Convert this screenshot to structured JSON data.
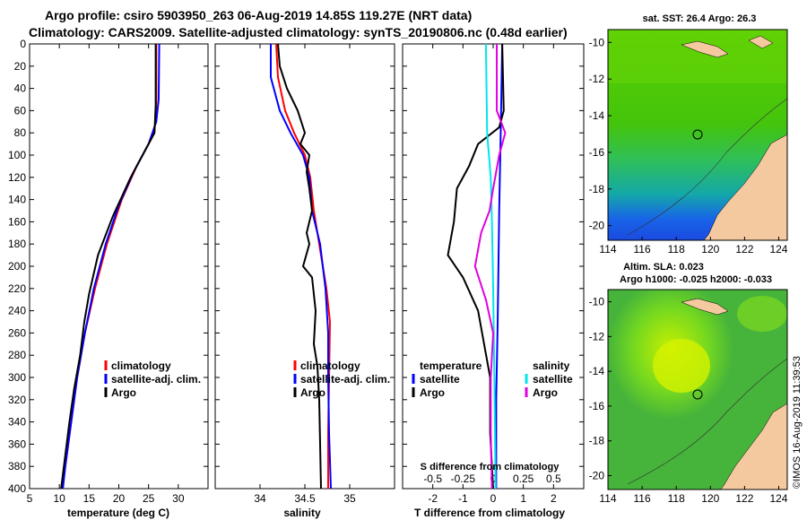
{
  "title": {
    "line1": "Argo profile: csiro 5903950_263 06-Aug-2019 14.85S 119.27E (NRT data)",
    "line2": "Climatology: CARS2009. Satellite-adjusted climatology: synTS_20190806.nc (0.48d earlier)"
  },
  "stamp": "©IMOS 16-Aug-2019 11:39:53",
  "colors": {
    "climatology": "#ff0000",
    "satellite": "#0000ff",
    "argo": "#000000",
    "sat_s": "#00e5ee",
    "argo_s": "#e000e0",
    "land": "#f5c9a0"
  },
  "maps": {
    "sst": {
      "title": "sat. SST: 26.4 Argo: 26.3"
    },
    "sla": {
      "title_line1": "Altim. SLA: 0.023",
      "title_line2": "Argo h1000: -0.025 h2000: -0.033"
    },
    "xticks": [
      "114",
      "116",
      "118",
      "120",
      "122",
      "124"
    ],
    "yticks": [
      "-10",
      "-12",
      "-14",
      "-16",
      "-18",
      "-20"
    ]
  },
  "chart_data": [
    {
      "type": "line",
      "name": "temperature",
      "xlabel": "temperature (deg C)",
      "ylabel": "",
      "xlim": [
        5,
        35
      ],
      "ylim": [
        400,
        0
      ],
      "xticks": [
        "5",
        "10",
        "15",
        "20",
        "25",
        "30"
      ],
      "xtick_values": [
        5,
        10,
        15,
        20,
        25,
        30
      ],
      "yticks": [
        "0",
        "20",
        "40",
        "60",
        "80",
        "100",
        "120",
        "140",
        "160",
        "180",
        "200",
        "220",
        "240",
        "260",
        "280",
        "300",
        "320",
        "340",
        "360",
        "380",
        "400"
      ],
      "legend": [
        "climatology",
        "satellite-adj. clim.",
        "Argo"
      ],
      "series": [
        {
          "name": "climatology",
          "color": "red",
          "values": [
            [
              26.3,
              0
            ],
            [
              26.3,
              50
            ],
            [
              26.2,
              70
            ],
            [
              25.5,
              85
            ],
            [
              23,
              110
            ],
            [
              20.5,
              140
            ],
            [
              18,
              180
            ],
            [
              16,
              220
            ],
            [
              14.3,
              260
            ],
            [
              13,
              300
            ],
            [
              12,
              340
            ],
            [
              11,
              380
            ],
            [
              10.5,
              400
            ]
          ]
        },
        {
          "name": "satellite-adj. clim.",
          "color": "blue",
          "values": [
            [
              26.8,
              0
            ],
            [
              26.7,
              50
            ],
            [
              26.3,
              70
            ],
            [
              25,
              90
            ],
            [
              22.5,
              115
            ],
            [
              20,
              145
            ],
            [
              17.8,
              180
            ],
            [
              15.8,
              220
            ],
            [
              14.3,
              260
            ],
            [
              13,
              300
            ],
            [
              12,
              340
            ],
            [
              11,
              380
            ],
            [
              10.6,
              400
            ]
          ]
        },
        {
          "name": "Argo",
          "color": "black",
          "values": [
            [
              26.2,
              0
            ],
            [
              26.2,
              55
            ],
            [
              26,
              80
            ],
            [
              24.5,
              95
            ],
            [
              22,
              120
            ],
            [
              19,
              155
            ],
            [
              16.5,
              190
            ],
            [
              15,
              225
            ],
            [
              14.2,
              250
            ],
            [
              13.5,
              280
            ],
            [
              12.5,
              310
            ],
            [
              11.7,
              340
            ],
            [
              11,
              370
            ],
            [
              10.3,
              400
            ]
          ]
        }
      ]
    },
    {
      "type": "line",
      "name": "salinity",
      "xlabel": "salinity",
      "ylabel": "",
      "xlim": [
        33.5,
        35.5
      ],
      "ylim": [
        400,
        0
      ],
      "xticks": [
        "34",
        "34.5",
        "35"
      ],
      "xtick_values": [
        34,
        34.5,
        35
      ],
      "legend": [
        "climatology",
        "satellite-adj. clim.",
        "Argo"
      ],
      "series": [
        {
          "name": "climatology",
          "color": "red",
          "values": [
            [
              34.18,
              0
            ],
            [
              34.2,
              30
            ],
            [
              34.28,
              60
            ],
            [
              34.38,
              80
            ],
            [
              34.5,
              100
            ],
            [
              34.56,
              120
            ],
            [
              34.6,
              150
            ],
            [
              34.66,
              180
            ],
            [
              34.74,
              220
            ],
            [
              34.78,
              250
            ],
            [
              34.77,
              300
            ],
            [
              34.76,
              350
            ],
            [
              34.76,
              400
            ]
          ]
        },
        {
          "name": "satellite-adj. clim.",
          "color": "blue",
          "values": [
            [
              34.12,
              0
            ],
            [
              34.12,
              30
            ],
            [
              34.22,
              60
            ],
            [
              34.34,
              80
            ],
            [
              34.48,
              100
            ],
            [
              34.55,
              120
            ],
            [
              34.58,
              150
            ],
            [
              34.67,
              180
            ],
            [
              34.73,
              220
            ],
            [
              34.76,
              260
            ],
            [
              34.76,
              300
            ],
            [
              34.77,
              350
            ],
            [
              34.79,
              400
            ]
          ]
        },
        {
          "name": "Argo",
          "color": "black",
          "values": [
            [
              34.2,
              0
            ],
            [
              34.22,
              20
            ],
            [
              34.3,
              40
            ],
            [
              34.42,
              60
            ],
            [
              34.5,
              80
            ],
            [
              34.45,
              90
            ],
            [
              34.55,
              100
            ],
            [
              34.52,
              115
            ],
            [
              34.55,
              130
            ],
            [
              34.58,
              150
            ],
            [
              34.52,
              170
            ],
            [
              34.55,
              180
            ],
            [
              34.48,
              200
            ],
            [
              34.58,
              210
            ],
            [
              34.62,
              240
            ],
            [
              34.6,
              270
            ],
            [
              34.64,
              290
            ],
            [
              34.66,
              320
            ],
            [
              34.67,
              360
            ],
            [
              34.68,
              400
            ]
          ]
        }
      ]
    },
    {
      "type": "line",
      "name": "difference",
      "xlabel": "T difference from climatology",
      "xlabel_top": "S difference from climatology",
      "xlim": [
        -3,
        3
      ],
      "ylim": [
        400,
        0
      ],
      "xticks": [
        "-2",
        "-1",
        "0",
        "1",
        "2"
      ],
      "xtick_values": [
        -2,
        -1,
        0,
        1,
        2
      ],
      "xticks_top": [
        "-0.5",
        "-0.25",
        "0",
        "0.25",
        "0.5"
      ],
      "xtick_top_values": [
        -0.5,
        -0.25,
        0,
        0.25,
        0.5
      ],
      "legend_headers": [
        "temperature",
        "salinity"
      ],
      "legend": [
        "satellite",
        "Argo",
        "satellite",
        "Argo"
      ],
      "series": [
        {
          "name": "T satellite",
          "color": "blue",
          "values": [
            [
              0.3,
              0
            ],
            [
              0.25,
              80
            ],
            [
              0.2,
              150
            ],
            [
              0.15,
              250
            ],
            [
              0.1,
              320
            ],
            [
              0.1,
              400
            ]
          ]
        },
        {
          "name": "T Argo",
          "color": "black",
          "values": [
            [
              0.3,
              0
            ],
            [
              0.35,
              60
            ],
            [
              0.2,
              75
            ],
            [
              -0.5,
              90
            ],
            [
              -0.8,
              110
            ],
            [
              -1.2,
              130
            ],
            [
              -1.3,
              160
            ],
            [
              -1.5,
              190
            ],
            [
              -1.0,
              210
            ],
            [
              -0.5,
              240
            ],
            [
              -0.3,
              270
            ],
            [
              -0.1,
              300
            ],
            [
              -0.1,
              350
            ],
            [
              0.0,
              400
            ]
          ]
        },
        {
          "name": "S satellite",
          "color": "cyan",
          "values": [
            [
              -0.06,
              0
            ],
            [
              -0.05,
              80
            ],
            [
              -0.02,
              120
            ],
            [
              -0.01,
              160
            ],
            [
              0.0,
              220
            ],
            [
              0.01,
              300
            ],
            [
              0.02,
              400
            ]
          ]
        },
        {
          "name": "S Argo",
          "color": "magenta",
          "values": [
            [
              0.03,
              0
            ],
            [
              0.03,
              60
            ],
            [
              0.1,
              80
            ],
            [
              0.05,
              100
            ],
            [
              0.0,
              130
            ],
            [
              -0.03,
              150
            ],
            [
              -0.1,
              170
            ],
            [
              -0.15,
              200
            ],
            [
              -0.06,
              230
            ],
            [
              0.0,
              260
            ],
            [
              -0.02,
              300
            ],
            [
              -0.02,
              350
            ],
            [
              -0.01,
              400
            ]
          ]
        }
      ]
    }
  ]
}
